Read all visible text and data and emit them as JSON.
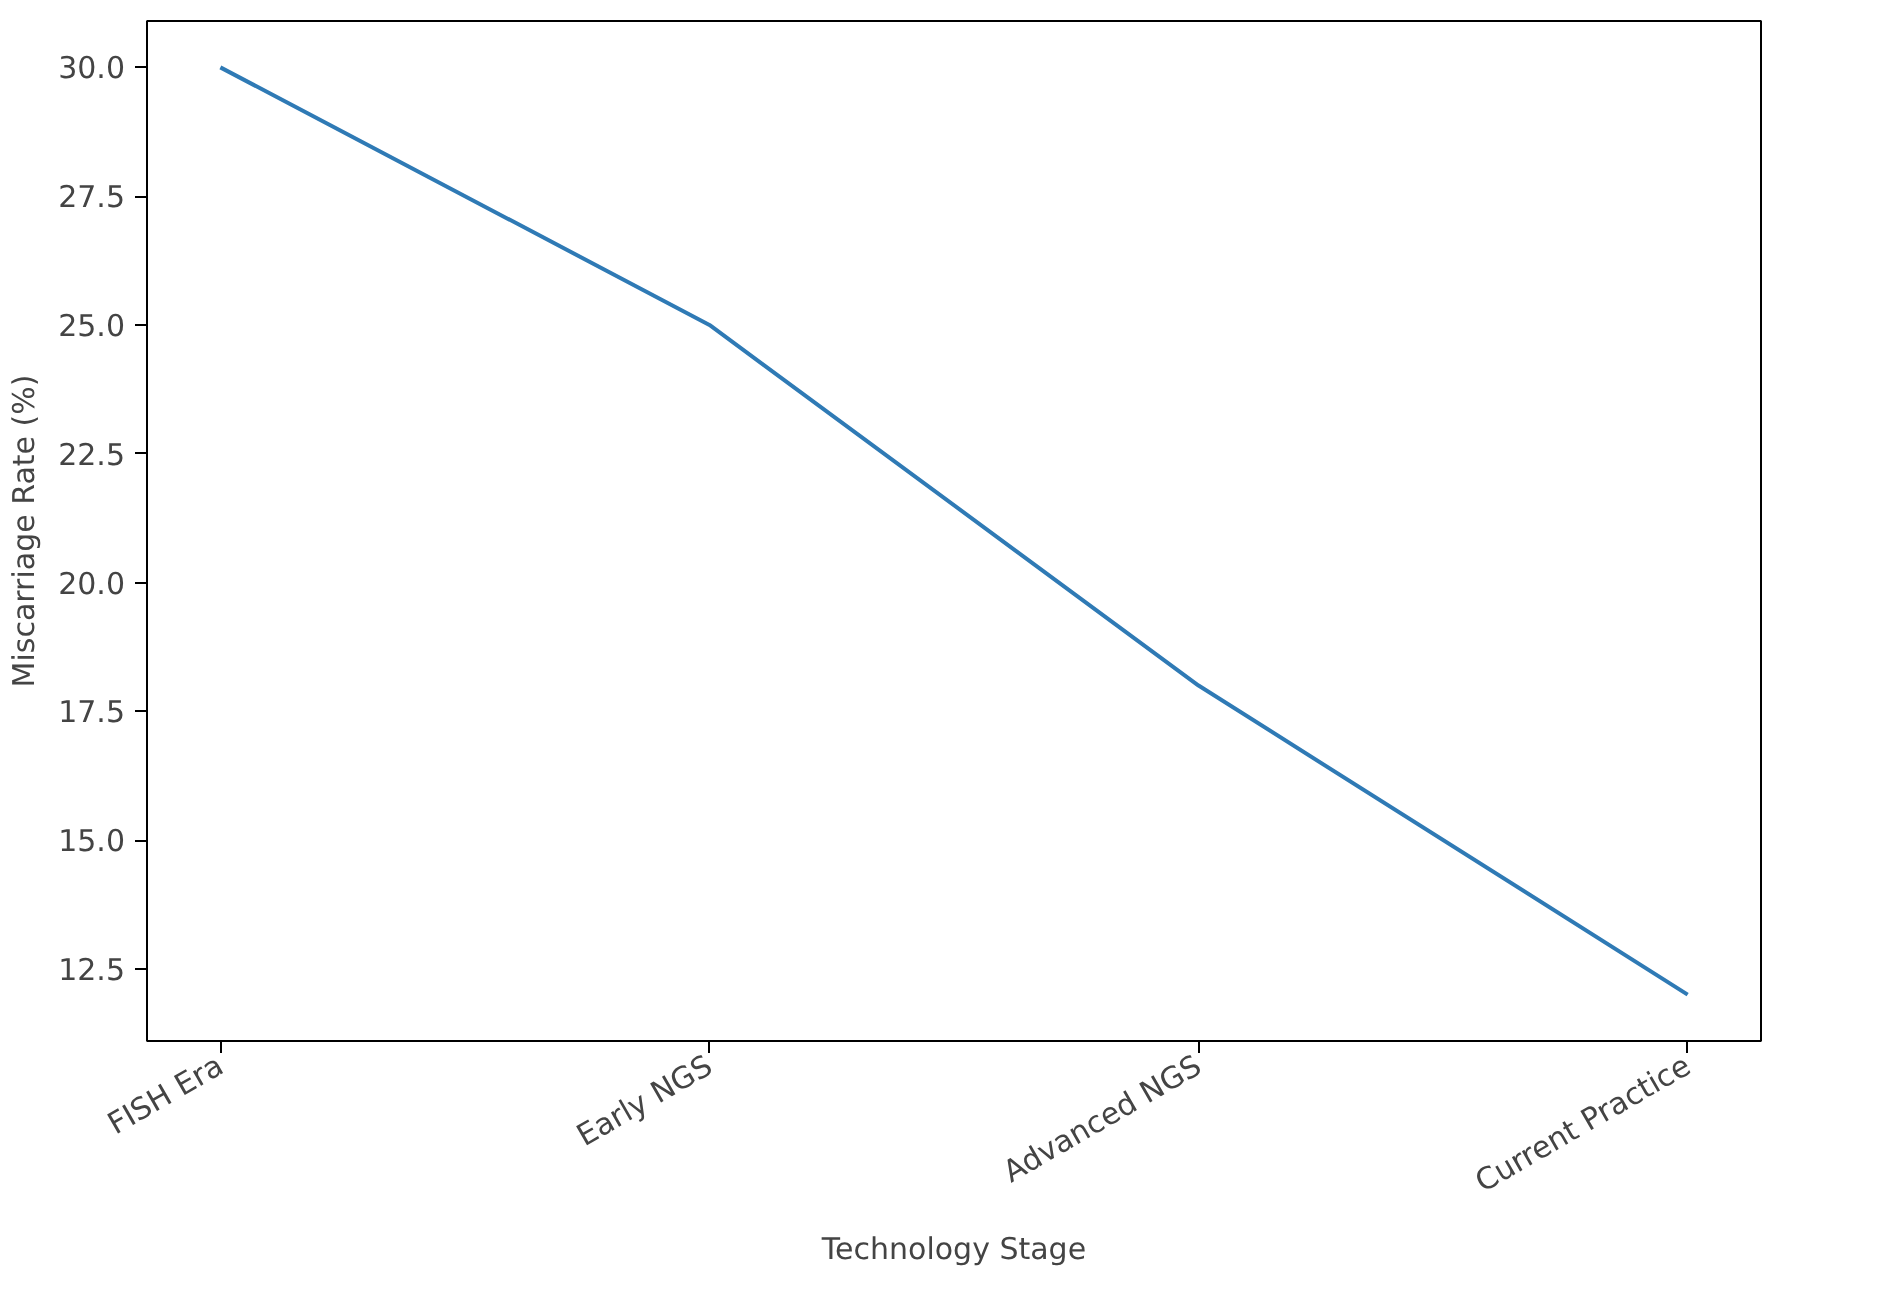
{
  "chart_data": {
    "type": "line",
    "xlabel": "Technology Stage",
    "ylabel": "Miscarriage Rate (%)",
    "categories": [
      "FISH Era",
      "Early NGS",
      "Advanced NGS",
      "Current Practice"
    ],
    "series": [
      {
        "color": "#2f7ab5",
        "values": [
          30,
          25,
          18,
          12
        ]
      }
    ],
    "ylim": [
      11.1,
      30.9
    ],
    "yticks": [
      {
        "value": 12.5,
        "label": "12.5"
      },
      {
        "value": 15,
        "label": "15.0"
      },
      {
        "value": 17.5,
        "label": "17.5"
      },
      {
        "value": 20,
        "label": "20.0"
      },
      {
        "value": 22.5,
        "label": "22.5"
      },
      {
        "value": 25,
        "label": "25.0"
      },
      {
        "value": 27.5,
        "label": "27.5"
      },
      {
        "value": 30,
        "label": "30.0"
      }
    ],
    "grid": false
  }
}
